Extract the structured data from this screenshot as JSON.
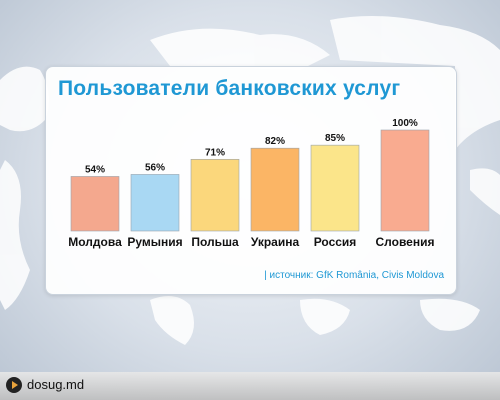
{
  "chart_data": {
    "type": "bar",
    "title": "Пользователи банковских услуг",
    "categories": [
      "Молдова",
      "Румыния",
      "Польша",
      "Украина",
      "Россия",
      "Словения"
    ],
    "values": [
      54,
      56,
      71,
      82,
      85,
      100
    ],
    "value_labels": [
      "54%",
      "56%",
      "71%",
      "82%",
      "85%",
      "100%"
    ],
    "ylim": [
      0,
      100
    ],
    "grid": false,
    "legend": "none",
    "colors": [
      "#f4a88e",
      "#a9d8f3",
      "#fbd77c",
      "#fbb565",
      "#fbe58a",
      "#f9ab90"
    ]
  },
  "source_text": "| источник: GfK România, Civis Moldova",
  "logo": {
    "text": "dosug.md"
  }
}
